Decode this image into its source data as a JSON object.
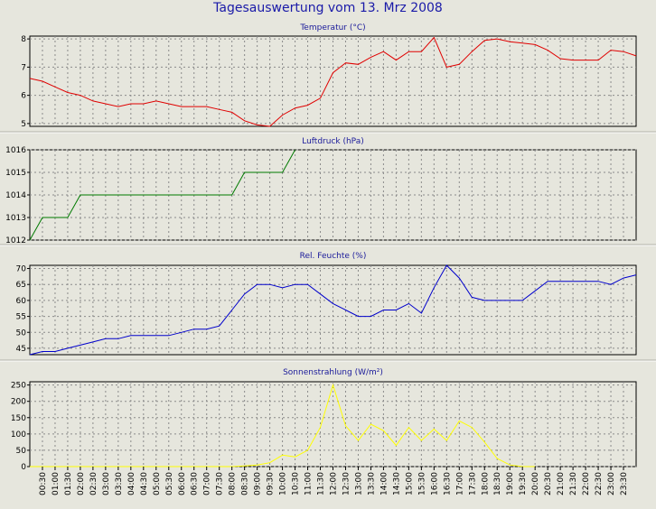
{
  "title": "Tagesauswertung vom 13. Mrz 2008",
  "time_labels": [
    "00:30",
    "01:00",
    "01:30",
    "02:00",
    "02:30",
    "03:00",
    "03:30",
    "04:00",
    "04:30",
    "05:00",
    "05:30",
    "06:00",
    "06:30",
    "07:00",
    "07:30",
    "08:00",
    "08:30",
    "09:00",
    "09:30",
    "10:00",
    "10:30",
    "11:00",
    "11:30",
    "12:00",
    "12:30",
    "13:00",
    "13:30",
    "14:00",
    "14:30",
    "15:00",
    "15:30",
    "16:00",
    "16:30",
    "17:00",
    "17:30",
    "18:00",
    "18:30",
    "19:00",
    "19:30",
    "20:00",
    "20:30",
    "21:00",
    "21:30",
    "22:00",
    "22:30",
    "23:00",
    "23:30"
  ],
  "chart_data": [
    {
      "type": "line",
      "title": "Temperatur (°C)",
      "ylim": [
        4.9,
        8.1
      ],
      "yticks": [
        5,
        6,
        7,
        8
      ],
      "grid": true,
      "color": "#e00000",
      "x": [
        "00:00",
        "00:30",
        "01:00",
        "01:30",
        "02:00",
        "02:30",
        "03:00",
        "03:30",
        "04:00",
        "04:30",
        "05:00",
        "05:30",
        "06:00",
        "06:30",
        "07:00",
        "07:30",
        "08:00",
        "08:30",
        "09:00",
        "09:30",
        "10:00",
        "10:30",
        "11:00",
        "11:30",
        "12:00",
        "12:30",
        "13:00",
        "13:30",
        "14:00",
        "14:30",
        "15:00",
        "15:30",
        "16:00",
        "16:30",
        "17:00",
        "17:30",
        "18:00",
        "18:30",
        "19:00",
        "19:30",
        "20:00",
        "20:30",
        "21:00",
        "21:30",
        "22:00",
        "22:30",
        "23:00",
        "23:30",
        "24:00"
      ],
      "values": [
        6.6,
        6.5,
        6.3,
        6.1,
        6.0,
        5.8,
        5.7,
        5.6,
        5.7,
        5.7,
        5.8,
        5.7,
        5.6,
        5.6,
        5.6,
        5.5,
        5.4,
        5.1,
        4.95,
        4.9,
        5.3,
        5.55,
        5.65,
        5.9,
        6.8,
        7.15,
        7.1,
        7.35,
        7.55,
        7.25,
        7.55,
        7.55,
        8.05,
        7.0,
        7.1,
        7.55,
        7.95,
        8.0,
        7.9,
        7.85,
        7.8,
        7.6,
        7.3,
        7.25,
        7.25,
        7.25,
        7.6,
        7.55,
        7.4
      ]
    },
    {
      "type": "line",
      "title": "Luftdruck (hPa)",
      "ylim": [
        1012,
        1016
      ],
      "yticks": [
        1012,
        1013,
        1014,
        1015,
        1016
      ],
      "grid": true,
      "color": "#007a00",
      "x": [
        "00:00",
        "00:30",
        "01:00",
        "01:30",
        "02:00",
        "08:00",
        "08:30",
        "09:00",
        "10:00",
        "10:30"
      ],
      "values": [
        1012,
        1013,
        1013,
        1013,
        1014,
        1014,
        1015,
        1015,
        1015,
        1016
      ]
    },
    {
      "type": "line",
      "title": "Rel. Feuchte (%)",
      "ylim": [
        43,
        71
      ],
      "yticks": [
        45,
        50,
        55,
        60,
        65,
        70
      ],
      "grid": true,
      "color": "#0000cc",
      "x": [
        "00:00",
        "00:30",
        "01:00",
        "01:30",
        "02:00",
        "02:30",
        "03:00",
        "03:30",
        "04:00",
        "04:30",
        "05:00",
        "05:30",
        "06:00",
        "06:30",
        "07:00",
        "07:30",
        "08:00",
        "08:30",
        "09:00",
        "09:30",
        "10:00",
        "10:30",
        "11:00",
        "11:30",
        "12:00",
        "12:30",
        "13:00",
        "13:30",
        "14:00",
        "14:30",
        "15:00",
        "15:30",
        "16:00",
        "16:30",
        "17:00",
        "17:30",
        "18:00",
        "18:30",
        "19:00",
        "19:30",
        "20:00",
        "20:30",
        "21:00",
        "21:30",
        "22:00",
        "22:30",
        "23:00",
        "23:30",
        "24:00"
      ],
      "values": [
        43,
        44,
        44,
        45,
        46,
        47,
        48,
        48,
        49,
        49,
        49,
        49,
        50,
        51,
        51,
        52,
        57,
        62,
        65,
        65,
        64,
        65,
        65,
        62,
        59,
        57,
        55,
        55,
        57,
        57,
        59,
        56,
        64,
        71,
        67,
        61,
        60,
        60,
        60,
        60,
        63,
        66,
        66,
        66,
        66,
        66,
        65,
        67,
        68
      ]
    },
    {
      "type": "line",
      "title": "Sonnenstrahlung (W/m²)",
      "ylim": [
        0,
        260
      ],
      "yticks": [
        0,
        50,
        100,
        150,
        200,
        250
      ],
      "grid": true,
      "color": "#ffff00",
      "x": [
        "00:00",
        "00:30",
        "01:00",
        "01:30",
        "02:00",
        "02:30",
        "03:00",
        "03:30",
        "04:00",
        "04:30",
        "05:00",
        "05:30",
        "06:00",
        "06:30",
        "07:00",
        "07:30",
        "08:00",
        "08:30",
        "09:00",
        "09:30",
        "10:00",
        "10:30",
        "11:00",
        "11:30",
        "12:00",
        "12:30",
        "13:00",
        "13:30",
        "14:00",
        "14:30",
        "15:00",
        "15:30",
        "16:00",
        "16:30",
        "17:00",
        "17:30",
        "18:00",
        "18:30",
        "19:00",
        "19:30",
        "20:00"
      ],
      "values": [
        0,
        0,
        0,
        0,
        0,
        0,
        0,
        0,
        0,
        0,
        0,
        0,
        0,
        0,
        0,
        0,
        0,
        2,
        5,
        12,
        35,
        30,
        50,
        120,
        250,
        125,
        80,
        130,
        110,
        65,
        120,
        80,
        115,
        80,
        140,
        120,
        75,
        25,
        5,
        0,
        0
      ]
    }
  ]
}
